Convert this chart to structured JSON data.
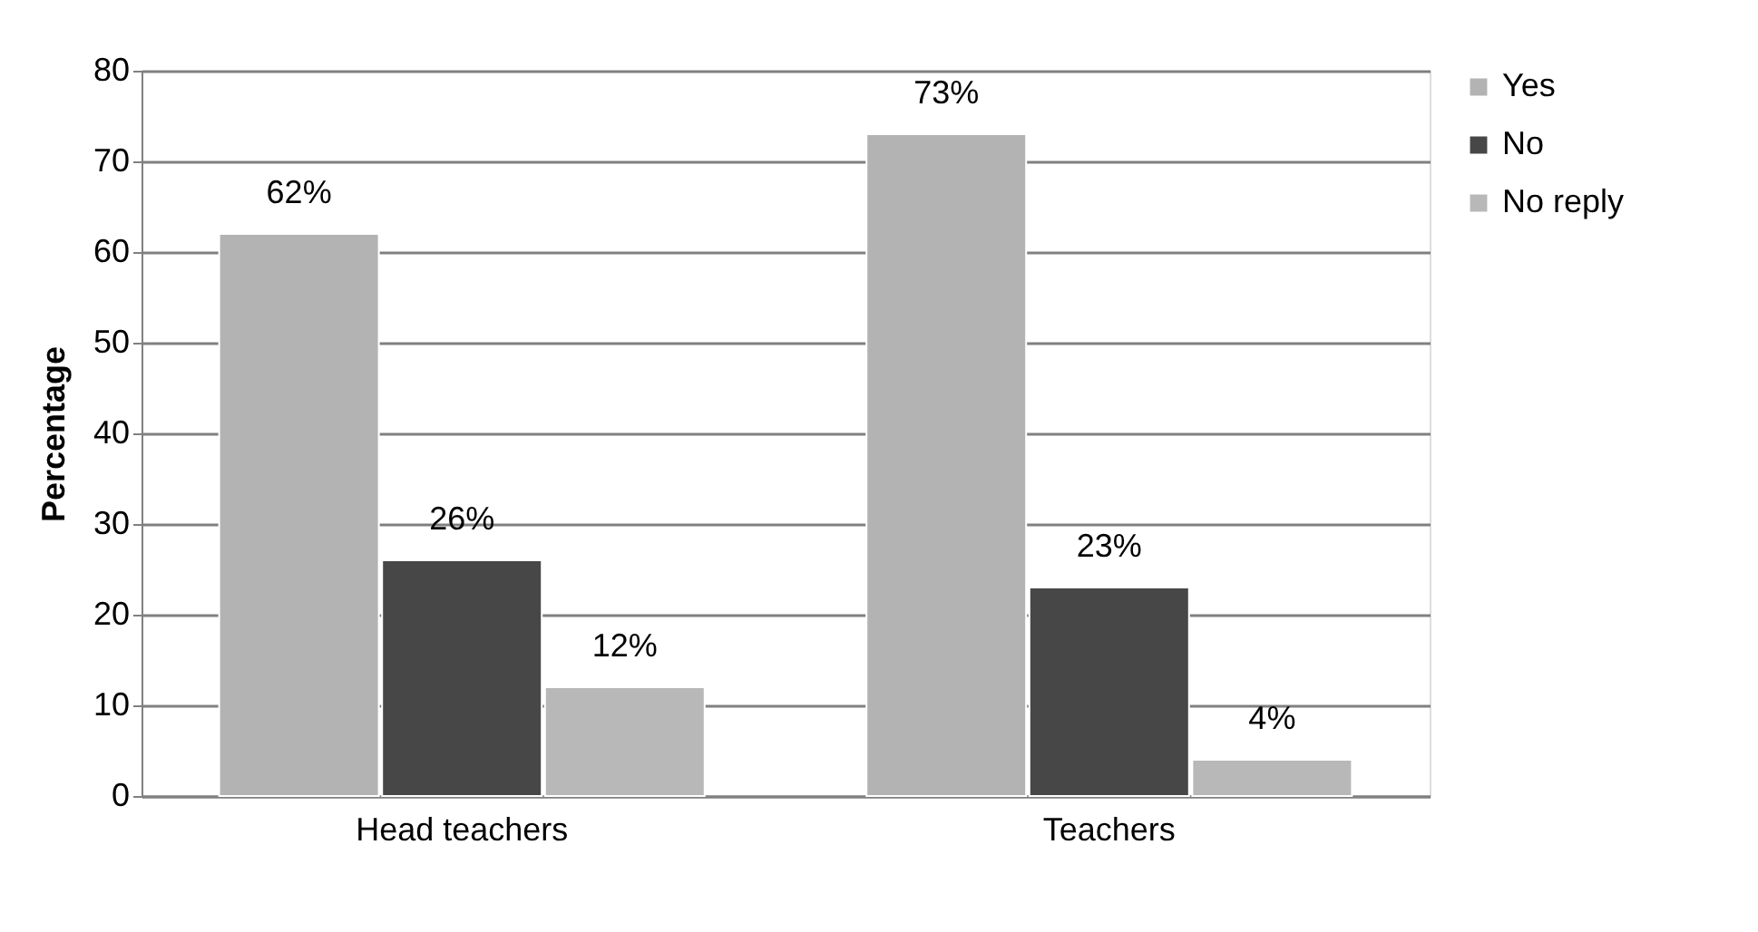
{
  "chart_data": {
    "type": "bar",
    "ylabel": "Percentage",
    "categories": [
      "Head teachers",
      "Teachers"
    ],
    "series": [
      {
        "name": "Yes",
        "color": "#b3b3b3",
        "values": [
          62,
          73
        ],
        "value_labels": [
          "62%",
          "73%"
        ]
      },
      {
        "name": "No",
        "color": "#474747",
        "values": [
          26,
          23
        ],
        "value_labels": [
          "26%",
          "23%"
        ]
      },
      {
        "name": "No reply",
        "color": "#b8b8b8",
        "values": [
          12,
          4
        ],
        "value_labels": [
          "12%",
          "4%"
        ]
      }
    ],
    "ylim": [
      0,
      80
    ],
    "yticks": [
      0,
      10,
      20,
      30,
      40,
      50,
      60,
      70,
      80
    ],
    "grid": "y",
    "legend": "right"
  }
}
